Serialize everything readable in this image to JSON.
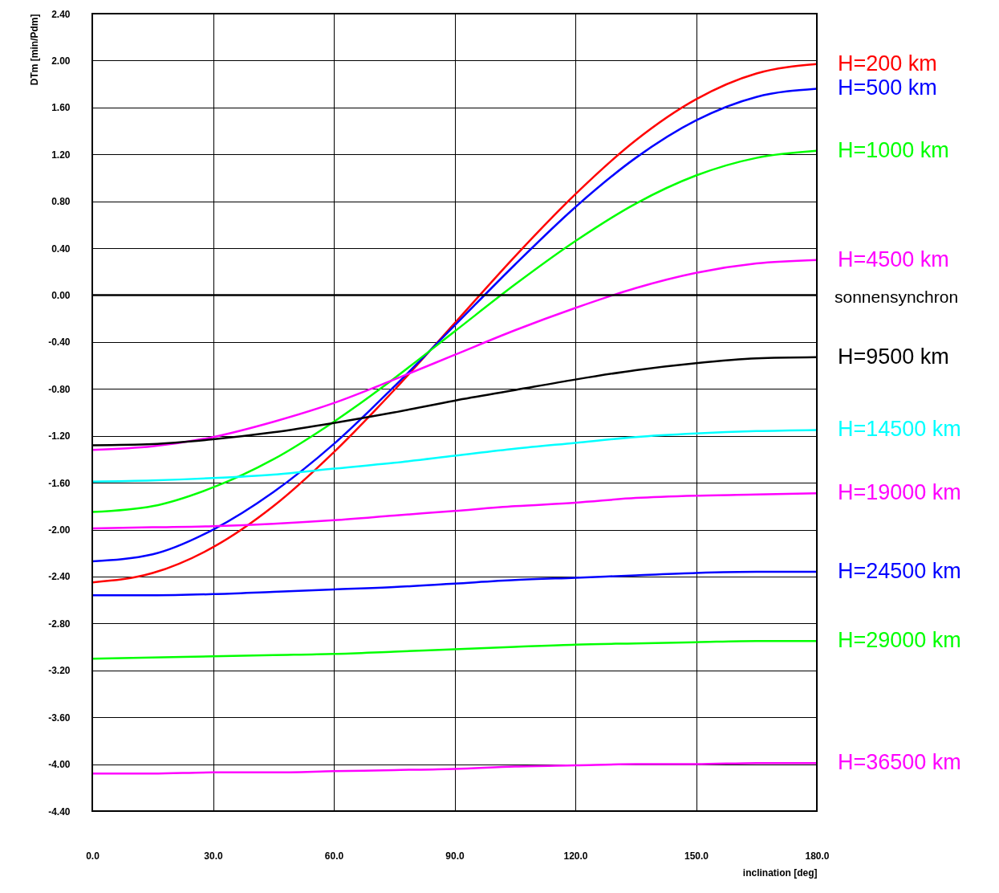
{
  "chart_data": {
    "type": "line",
    "xlabel": "inclination [deg]",
    "ylabel": "DTm [min/Pdm]",
    "x": [
      0,
      15,
      30,
      45,
      60,
      75,
      90,
      105,
      120,
      135,
      150,
      165,
      180
    ],
    "xlim": [
      0,
      180
    ],
    "ylim": [
      -4.4,
      2.4
    ],
    "xticks": [
      {
        "value": 0,
        "label": "0.0"
      },
      {
        "value": 30,
        "label": "30.0"
      },
      {
        "value": 60,
        "label": "60.0"
      },
      {
        "value": 90,
        "label": "90.0"
      },
      {
        "value": 120,
        "label": "120.0"
      },
      {
        "value": 150,
        "label": "150.0"
      },
      {
        "value": 180,
        "label": "180.0"
      }
    ],
    "yticks": [
      {
        "value": -4.4,
        "label": "-4.40"
      },
      {
        "value": -4.0,
        "label": "-4.00"
      },
      {
        "value": -3.6,
        "label": "-3.60"
      },
      {
        "value": -3.2,
        "label": "-3.20"
      },
      {
        "value": -2.8,
        "label": "-2.80"
      },
      {
        "value": -2.4,
        "label": "-2.40"
      },
      {
        "value": -2.0,
        "label": "-2.00"
      },
      {
        "value": -1.6,
        "label": "-1.60"
      },
      {
        "value": -1.2,
        "label": "-1.20"
      },
      {
        "value": -0.8,
        "label": "-0.80"
      },
      {
        "value": -0.4,
        "label": "-0.40"
      },
      {
        "value": 0,
        "label": "0.00"
      },
      {
        "value": 0.4,
        "label": "0.40"
      },
      {
        "value": 0.8,
        "label": "0.80"
      },
      {
        "value": 1.2,
        "label": "1.20"
      },
      {
        "value": 1.6,
        "label": "1.60"
      },
      {
        "value": 2.0,
        "label": "2.00"
      },
      {
        "value": 2.4,
        "label": "2.40"
      }
    ],
    "grid": true,
    "marker": "none",
    "line_style": "solid",
    "ref_lines": [
      {
        "axis": "y",
        "value": 0,
        "color": "#000000"
      }
    ],
    "annotations": [
      "sonnensynchron"
    ],
    "series": [
      {
        "name": "H=200 km",
        "color": "#ff0000",
        "values": [
          -2.45,
          -2.37,
          -2.15,
          -1.8,
          -1.34,
          -0.81,
          -0.24,
          0.33,
          0.86,
          1.32,
          1.67,
          1.89,
          1.97
        ]
      },
      {
        "name": "H=500 km",
        "color": "#0000ff",
        "values": [
          -2.27,
          -2.21,
          -2.0,
          -1.68,
          -1.27,
          -0.78,
          -0.26,
          0.26,
          0.75,
          1.17,
          1.49,
          1.69,
          1.76
        ]
      },
      {
        "name": "H=1000 km",
        "color": "#00ff00",
        "values": [
          -1.85,
          -1.8,
          -1.64,
          -1.4,
          -1.08,
          -0.71,
          -0.31,
          0.09,
          0.46,
          0.78,
          1.02,
          1.17,
          1.23
        ]
      },
      {
        "name": "H=4500 km",
        "color": "#ff00ff",
        "values": [
          -1.32,
          -1.29,
          -1.21,
          -1.08,
          -0.92,
          -0.72,
          -0.51,
          -0.3,
          -0.11,
          0.06,
          0.19,
          0.27,
          0.3
        ]
      },
      {
        "name": "H=9500 km",
        "color": "#000000",
        "values": [
          -1.28,
          -1.27,
          -1.23,
          -1.17,
          -1.09,
          -1.0,
          -0.9,
          -0.81,
          -0.72,
          -0.64,
          -0.58,
          -0.54,
          -0.53
        ]
      },
      {
        "name": "H=14500 km",
        "color": "#00ffff",
        "values": [
          -1.59,
          -1.58,
          -1.56,
          -1.53,
          -1.48,
          -1.43,
          -1.37,
          -1.31,
          -1.26,
          -1.21,
          -1.18,
          -1.16,
          -1.15
        ]
      },
      {
        "name": "H=19000 km",
        "color": "#ff00ff",
        "values": [
          -1.99,
          -1.98,
          -1.97,
          -1.95,
          -1.92,
          -1.88,
          -1.84,
          -1.8,
          -1.77,
          -1.73,
          -1.71,
          -1.7,
          -1.69
        ]
      },
      {
        "name": "H=24500 km",
        "color": "#0000ff",
        "values": [
          -2.56,
          -2.56,
          -2.55,
          -2.53,
          -2.51,
          -2.49,
          -2.46,
          -2.43,
          -2.41,
          -2.39,
          -2.37,
          -2.36,
          -2.36
        ]
      },
      {
        "name": "H=29000 km",
        "color": "#00ff00",
        "values": [
          -3.1,
          -3.09,
          -3.08,
          -3.07,
          -3.06,
          -3.04,
          -3.02,
          -3.0,
          -2.98,
          -2.97,
          -2.96,
          -2.95,
          -2.95
        ]
      },
      {
        "name": "H=36500 km",
        "color": "#ff00ff",
        "values": [
          -4.08,
          -4.08,
          -4.07,
          -4.07,
          -4.06,
          -4.05,
          -4.04,
          -4.02,
          -4.01,
          -4.0,
          -4.0,
          -3.99,
          -3.99
        ]
      }
    ]
  }
}
